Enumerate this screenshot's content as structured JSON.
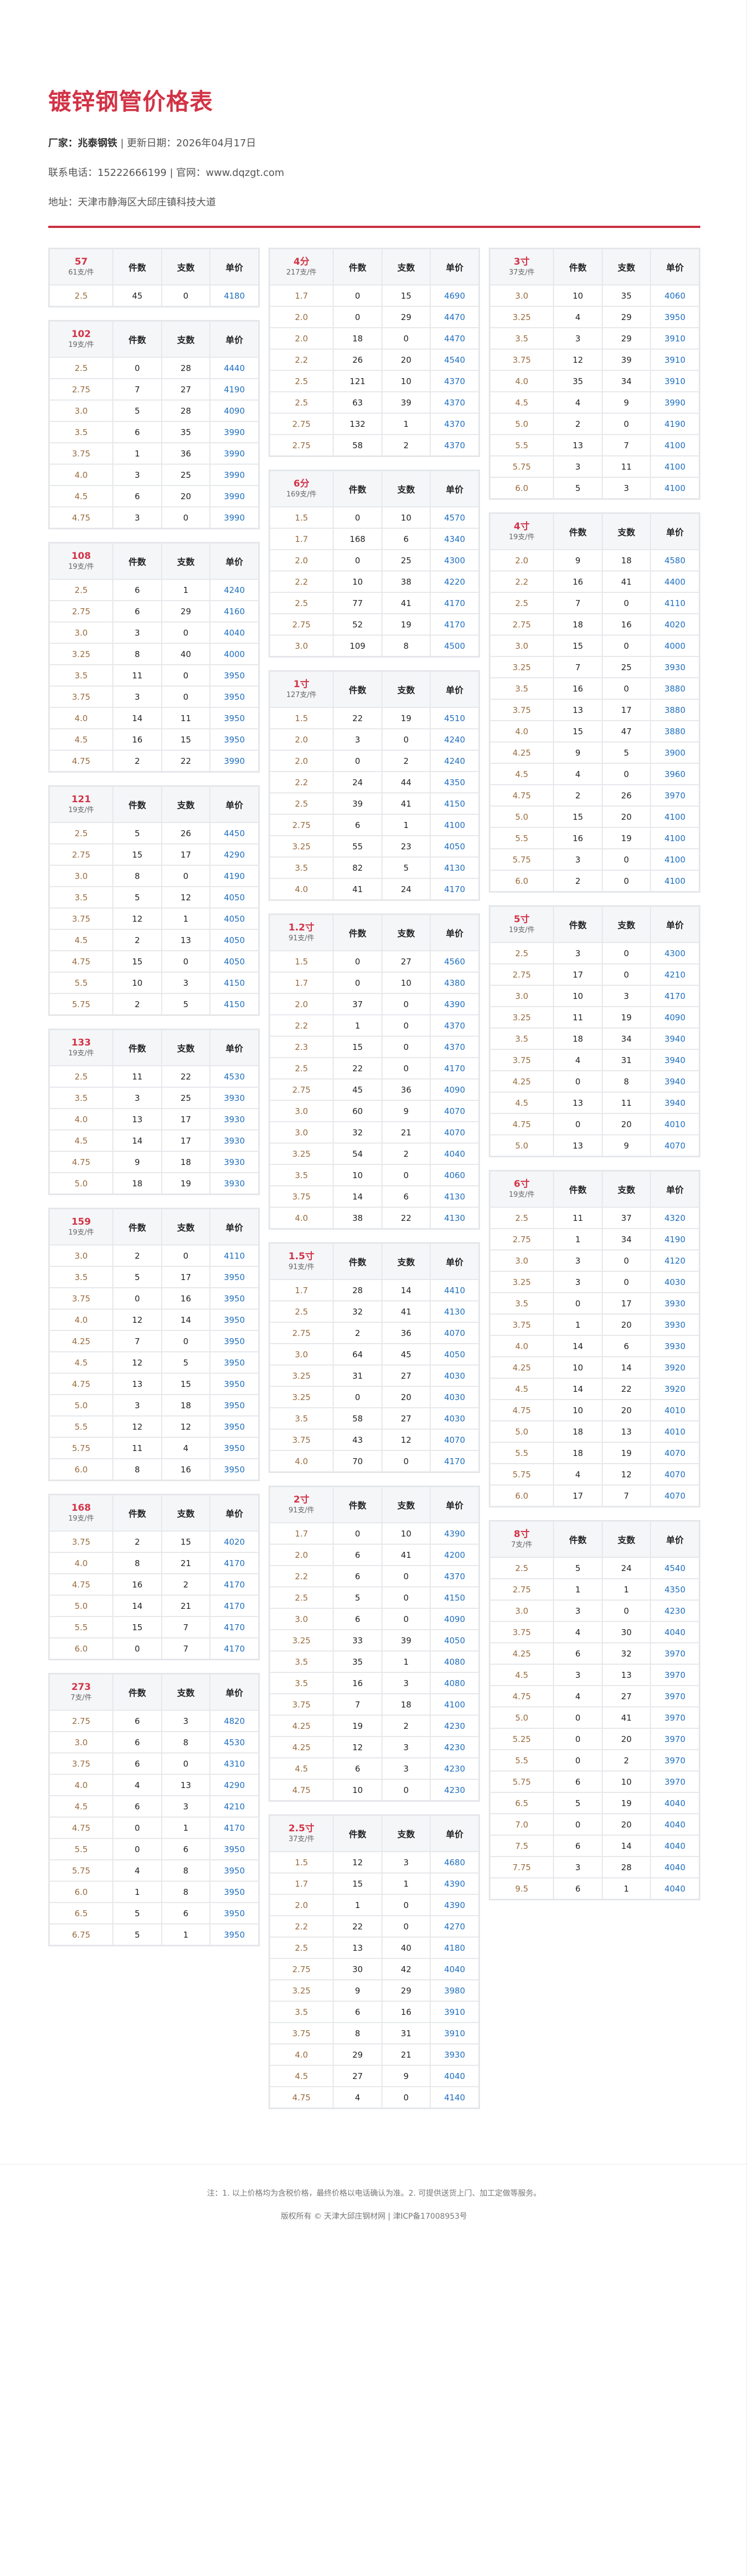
{
  "header": {
    "title": "镀锌钢管价格表",
    "maker_label": "厂家：",
    "maker": "兆泰钢铁",
    "update_label": "更新日期：",
    "update_date": "2026年04月17日",
    "phone_label": "联系电话：",
    "phone": "15222666199",
    "site_label": "官网：",
    "site": "www.dqzgt.com",
    "address_label": "地址：",
    "address": "天津市静海区大邱庄镇科技大道",
    "separator": "|"
  },
  "columns_header": {
    "pieces": "件数",
    "sticks": "支数",
    "price": "单价"
  },
  "colors": {
    "accent": "#d23346",
    "thickness": "#9a6b3c",
    "price": "#1e6fc0"
  },
  "tables": [
    {
      "name": "57",
      "per": "61支/件",
      "rows": [
        [
          "2.5",
          "45",
          "0",
          "4180"
        ]
      ]
    },
    {
      "name": "102",
      "per": "19支/件",
      "rows": [
        [
          "2.5",
          "0",
          "28",
          "4440"
        ],
        [
          "2.75",
          "7",
          "27",
          "4190"
        ],
        [
          "3.0",
          "5",
          "28",
          "4090"
        ],
        [
          "3.5",
          "6",
          "35",
          "3990"
        ],
        [
          "3.75",
          "1",
          "36",
          "3990"
        ],
        [
          "4.0",
          "3",
          "25",
          "3990"
        ],
        [
          "4.5",
          "6",
          "20",
          "3990"
        ],
        [
          "4.75",
          "3",
          "0",
          "3990"
        ]
      ]
    },
    {
      "name": "108",
      "per": "19支/件",
      "rows": [
        [
          "2.5",
          "6",
          "1",
          "4240"
        ],
        [
          "2.75",
          "6",
          "29",
          "4160"
        ],
        [
          "3.0",
          "3",
          "0",
          "4040"
        ],
        [
          "3.25",
          "8",
          "40",
          "4000"
        ],
        [
          "3.5",
          "11",
          "0",
          "3950"
        ],
        [
          "3.75",
          "3",
          "0",
          "3950"
        ],
        [
          "4.0",
          "14",
          "11",
          "3950"
        ],
        [
          "4.5",
          "16",
          "15",
          "3950"
        ],
        [
          "4.75",
          "2",
          "22",
          "3990"
        ]
      ]
    },
    {
      "name": "121",
      "per": "19支/件",
      "rows": [
        [
          "2.5",
          "5",
          "26",
          "4450"
        ],
        [
          "2.75",
          "15",
          "17",
          "4290"
        ],
        [
          "3.0",
          "8",
          "0",
          "4190"
        ],
        [
          "3.5",
          "5",
          "12",
          "4050"
        ],
        [
          "3.75",
          "12",
          "1",
          "4050"
        ],
        [
          "4.5",
          "2",
          "13",
          "4050"
        ],
        [
          "4.75",
          "15",
          "0",
          "4050"
        ],
        [
          "5.5",
          "10",
          "3",
          "4150"
        ],
        [
          "5.75",
          "2",
          "5",
          "4150"
        ]
      ]
    },
    {
      "name": "133",
      "per": "19支/件",
      "rows": [
        [
          "2.5",
          "11",
          "22",
          "4530"
        ],
        [
          "3.5",
          "3",
          "25",
          "3930"
        ],
        [
          "4.0",
          "13",
          "17",
          "3930"
        ],
        [
          "4.5",
          "14",
          "17",
          "3930"
        ],
        [
          "4.75",
          "9",
          "18",
          "3930"
        ],
        [
          "5.0",
          "18",
          "19",
          "3930"
        ]
      ]
    },
    {
      "name": "159",
      "per": "19支/件",
      "rows": [
        [
          "3.0",
          "2",
          "0",
          "4110"
        ],
        [
          "3.5",
          "5",
          "17",
          "3950"
        ],
        [
          "3.75",
          "0",
          "16",
          "3950"
        ],
        [
          "4.0",
          "12",
          "14",
          "3950"
        ],
        [
          "4.25",
          "7",
          "0",
          "3950"
        ],
        [
          "4.5",
          "12",
          "5",
          "3950"
        ],
        [
          "4.75",
          "13",
          "15",
          "3950"
        ],
        [
          "5.0",
          "3",
          "18",
          "3950"
        ],
        [
          "5.5",
          "12",
          "12",
          "3950"
        ],
        [
          "5.75",
          "11",
          "4",
          "3950"
        ],
        [
          "6.0",
          "8",
          "16",
          "3950"
        ]
      ]
    },
    {
      "name": "168",
      "per": "19支/件",
      "rows": [
        [
          "3.75",
          "2",
          "15",
          "4020"
        ],
        [
          "4.0",
          "8",
          "21",
          "4170"
        ],
        [
          "4.75",
          "16",
          "2",
          "4170"
        ],
        [
          "5.0",
          "14",
          "21",
          "4170"
        ],
        [
          "5.5",
          "15",
          "7",
          "4170"
        ],
        [
          "6.0",
          "0",
          "7",
          "4170"
        ]
      ]
    },
    {
      "name": "273",
      "per": "7支/件",
      "rows": [
        [
          "2.75",
          "6",
          "3",
          "4820"
        ],
        [
          "3.0",
          "6",
          "8",
          "4530"
        ],
        [
          "3.75",
          "6",
          "0",
          "4310"
        ],
        [
          "4.0",
          "4",
          "13",
          "4290"
        ],
        [
          "4.5",
          "6",
          "3",
          "4210"
        ],
        [
          "4.75",
          "0",
          "1",
          "4170"
        ],
        [
          "5.5",
          "0",
          "6",
          "3950"
        ],
        [
          "5.75",
          "4",
          "8",
          "3950"
        ],
        [
          "6.0",
          "1",
          "8",
          "3950"
        ],
        [
          "6.5",
          "5",
          "6",
          "3950"
        ],
        [
          "6.75",
          "5",
          "1",
          "3950"
        ]
      ]
    },
    {
      "name": "4分",
      "per": "217支/件",
      "rows": [
        [
          "1.7",
          "0",
          "15",
          "4690"
        ],
        [
          "2.0",
          "0",
          "29",
          "4470"
        ],
        [
          "2.0",
          "18",
          "0",
          "4470"
        ],
        [
          "2.2",
          "26",
          "20",
          "4540"
        ],
        [
          "2.5",
          "121",
          "10",
          "4370"
        ],
        [
          "2.5",
          "63",
          "39",
          "4370"
        ],
        [
          "2.75",
          "132",
          "1",
          "4370"
        ],
        [
          "2.75",
          "58",
          "2",
          "4370"
        ]
      ]
    },
    {
      "name": "6分",
      "per": "169支/件",
      "rows": [
        [
          "1.5",
          "0",
          "10",
          "4570"
        ],
        [
          "1.7",
          "168",
          "6",
          "4340"
        ],
        [
          "2.0",
          "0",
          "25",
          "4300"
        ],
        [
          "2.2",
          "10",
          "38",
          "4220"
        ],
        [
          "2.5",
          "77",
          "41",
          "4170"
        ],
        [
          "2.75",
          "52",
          "19",
          "4170"
        ],
        [
          "3.0",
          "109",
          "8",
          "4500"
        ]
      ]
    },
    {
      "name": "1寸",
      "per": "127支/件",
      "rows": [
        [
          "1.5",
          "22",
          "19",
          "4510"
        ],
        [
          "2.0",
          "3",
          "0",
          "4240"
        ],
        [
          "2.0",
          "0",
          "2",
          "4240"
        ],
        [
          "2.2",
          "24",
          "44",
          "4350"
        ],
        [
          "2.5",
          "39",
          "41",
          "4150"
        ],
        [
          "2.75",
          "6",
          "1",
          "4100"
        ],
        [
          "3.25",
          "55",
          "23",
          "4050"
        ],
        [
          "3.5",
          "82",
          "5",
          "4130"
        ],
        [
          "4.0",
          "41",
          "24",
          "4170"
        ]
      ]
    },
    {
      "name": "1.2寸",
      "per": "91支/件",
      "rows": [
        [
          "1.5",
          "0",
          "27",
          "4560"
        ],
        [
          "1.7",
          "0",
          "10",
          "4380"
        ],
        [
          "2.0",
          "37",
          "0",
          "4390"
        ],
        [
          "2.2",
          "1",
          "0",
          "4370"
        ],
        [
          "2.3",
          "15",
          "0",
          "4370"
        ],
        [
          "2.5",
          "22",
          "0",
          "4170"
        ],
        [
          "2.75",
          "45",
          "36",
          "4090"
        ],
        [
          "3.0",
          "60",
          "9",
          "4070"
        ],
        [
          "3.0",
          "32",
          "21",
          "4070"
        ],
        [
          "3.25",
          "54",
          "2",
          "4040"
        ],
        [
          "3.5",
          "10",
          "0",
          "4060"
        ],
        [
          "3.75",
          "14",
          "6",
          "4130"
        ],
        [
          "4.0",
          "38",
          "22",
          "4130"
        ]
      ]
    },
    {
      "name": "1.5寸",
      "per": "91支/件",
      "rows": [
        [
          "1.7",
          "28",
          "14",
          "4410"
        ],
        [
          "2.5",
          "32",
          "41",
          "4130"
        ],
        [
          "2.75",
          "2",
          "36",
          "4070"
        ],
        [
          "3.0",
          "64",
          "45",
          "4050"
        ],
        [
          "3.25",
          "31",
          "27",
          "4030"
        ],
        [
          "3.25",
          "0",
          "20",
          "4030"
        ],
        [
          "3.5",
          "58",
          "27",
          "4030"
        ],
        [
          "3.75",
          "43",
          "12",
          "4070"
        ],
        [
          "4.0",
          "70",
          "0",
          "4170"
        ]
      ]
    },
    {
      "name": "2寸",
      "per": "91支/件",
      "rows": [
        [
          "1.7",
          "0",
          "10",
          "4390"
        ],
        [
          "2.0",
          "6",
          "41",
          "4200"
        ],
        [
          "2.2",
          "6",
          "0",
          "4370"
        ],
        [
          "2.5",
          "5",
          "0",
          "4150"
        ],
        [
          "3.0",
          "6",
          "0",
          "4090"
        ],
        [
          "3.25",
          "33",
          "39",
          "4050"
        ],
        [
          "3.5",
          "35",
          "1",
          "4080"
        ],
        [
          "3.5",
          "16",
          "3",
          "4080"
        ],
        [
          "3.75",
          "7",
          "18",
          "4100"
        ],
        [
          "4.25",
          "19",
          "2",
          "4230"
        ],
        [
          "4.25",
          "12",
          "3",
          "4230"
        ],
        [
          "4.5",
          "6",
          "3",
          "4230"
        ],
        [
          "4.75",
          "10",
          "0",
          "4230"
        ]
      ]
    },
    {
      "name": "2.5寸",
      "per": "37支/件",
      "rows": [
        [
          "1.5",
          "12",
          "3",
          "4680"
        ],
        [
          "1.7",
          "15",
          "1",
          "4390"
        ],
        [
          "2.0",
          "1",
          "0",
          "4390"
        ],
        [
          "2.2",
          "22",
          "0",
          "4270"
        ],
        [
          "2.5",
          "13",
          "40",
          "4180"
        ],
        [
          "2.75",
          "30",
          "42",
          "4040"
        ],
        [
          "3.25",
          "9",
          "29",
          "3980"
        ],
        [
          "3.5",
          "6",
          "16",
          "3910"
        ],
        [
          "3.75",
          "8",
          "31",
          "3910"
        ],
        [
          "4.0",
          "29",
          "21",
          "3930"
        ],
        [
          "4.5",
          "27",
          "9",
          "4040"
        ],
        [
          "4.75",
          "4",
          "0",
          "4140"
        ]
      ]
    },
    {
      "name": "3寸",
      "per": "37支/件",
      "rows": [
        [
          "3.0",
          "10",
          "35",
          "4060"
        ],
        [
          "3.25",
          "4",
          "29",
          "3950"
        ],
        [
          "3.5",
          "3",
          "29",
          "3910"
        ],
        [
          "3.75",
          "12",
          "39",
          "3910"
        ],
        [
          "4.0",
          "35",
          "34",
          "3910"
        ],
        [
          "4.5",
          "4",
          "9",
          "3990"
        ],
        [
          "5.0",
          "2",
          "0",
          "4190"
        ],
        [
          "5.5",
          "13",
          "7",
          "4100"
        ],
        [
          "5.75",
          "3",
          "11",
          "4100"
        ],
        [
          "6.0",
          "5",
          "3",
          "4100"
        ]
      ]
    },
    {
      "name": "4寸",
      "per": "19支/件",
      "rows": [
        [
          "2.0",
          "9",
          "18",
          "4580"
        ],
        [
          "2.2",
          "16",
          "41",
          "4400"
        ],
        [
          "2.5",
          "7",
          "0",
          "4110"
        ],
        [
          "2.75",
          "18",
          "16",
          "4020"
        ],
        [
          "3.0",
          "15",
          "0",
          "4000"
        ],
        [
          "3.25",
          "7",
          "25",
          "3930"
        ],
        [
          "3.5",
          "16",
          "0",
          "3880"
        ],
        [
          "3.75",
          "13",
          "17",
          "3880"
        ],
        [
          "4.0",
          "15",
          "47",
          "3880"
        ],
        [
          "4.25",
          "9",
          "5",
          "3900"
        ],
        [
          "4.5",
          "4",
          "0",
          "3960"
        ],
        [
          "4.75",
          "2",
          "26",
          "3970"
        ],
        [
          "5.0",
          "15",
          "20",
          "4100"
        ],
        [
          "5.5",
          "16",
          "19",
          "4100"
        ],
        [
          "5.75",
          "3",
          "0",
          "4100"
        ],
        [
          "6.0",
          "2",
          "0",
          "4100"
        ]
      ]
    },
    {
      "name": "5寸",
      "per": "19支/件",
      "rows": [
        [
          "2.5",
          "3",
          "0",
          "4300"
        ],
        [
          "2.75",
          "17",
          "0",
          "4210"
        ],
        [
          "3.0",
          "10",
          "3",
          "4170"
        ],
        [
          "3.25",
          "11",
          "19",
          "4090"
        ],
        [
          "3.5",
          "18",
          "34",
          "3940"
        ],
        [
          "3.75",
          "4",
          "31",
          "3940"
        ],
        [
          "4.25",
          "0",
          "8",
          "3940"
        ],
        [
          "4.5",
          "13",
          "11",
          "3940"
        ],
        [
          "4.75",
          "0",
          "20",
          "4010"
        ],
        [
          "5.0",
          "13",
          "9",
          "4070"
        ]
      ]
    },
    {
      "name": "6寸",
      "per": "19支/件",
      "rows": [
        [
          "2.5",
          "11",
          "37",
          "4320"
        ],
        [
          "2.75",
          "1",
          "34",
          "4190"
        ],
        [
          "3.0",
          "3",
          "0",
          "4120"
        ],
        [
          "3.25",
          "3",
          "0",
          "4030"
        ],
        [
          "3.5",
          "0",
          "17",
          "3930"
        ],
        [
          "3.75",
          "1",
          "20",
          "3930"
        ],
        [
          "4.0",
          "14",
          "6",
          "3930"
        ],
        [
          "4.25",
          "10",
          "14",
          "3920"
        ],
        [
          "4.5",
          "14",
          "22",
          "3920"
        ],
        [
          "4.75",
          "10",
          "20",
          "4010"
        ],
        [
          "5.0",
          "18",
          "13",
          "4010"
        ],
        [
          "5.5",
          "18",
          "19",
          "4070"
        ],
        [
          "5.75",
          "4",
          "12",
          "4070"
        ],
        [
          "6.0",
          "17",
          "7",
          "4070"
        ]
      ]
    },
    {
      "name": "8寸",
      "per": "7支/件",
      "rows": [
        [
          "2.5",
          "5",
          "24",
          "4540"
        ],
        [
          "2.75",
          "1",
          "1",
          "4350"
        ],
        [
          "3.0",
          "3",
          "0",
          "4230"
        ],
        [
          "3.75",
          "4",
          "30",
          "4040"
        ],
        [
          "4.25",
          "6",
          "32",
          "3970"
        ],
        [
          "4.5",
          "3",
          "13",
          "3970"
        ],
        [
          "4.75",
          "4",
          "27",
          "3970"
        ],
        [
          "5.0",
          "0",
          "41",
          "3970"
        ],
        [
          "5.25",
          "0",
          "20",
          "3970"
        ],
        [
          "5.5",
          "0",
          "2",
          "3970"
        ],
        [
          "5.75",
          "6",
          "10",
          "3970"
        ],
        [
          "6.5",
          "5",
          "19",
          "4040"
        ],
        [
          "7.0",
          "0",
          "20",
          "4040"
        ],
        [
          "7.5",
          "6",
          "14",
          "4040"
        ],
        [
          "7.75",
          "3",
          "28",
          "4040"
        ],
        [
          "9.5",
          "6",
          "1",
          "4040"
        ]
      ]
    }
  ],
  "layout_columns": [
    [
      0,
      1,
      2,
      3,
      4,
      5,
      6,
      7
    ],
    [
      8,
      9,
      10,
      11,
      12,
      13,
      14
    ],
    [
      15,
      16,
      17,
      18,
      19
    ]
  ],
  "footer": {
    "note": "注：1. 以上价格均为含税价格，最终价格以电话确认为准。2. 可提供送货上门、加工定做等服务。",
    "copyright": "版权所有 © 天津大邱庄钢材网 | 津ICP备17008953号"
  }
}
